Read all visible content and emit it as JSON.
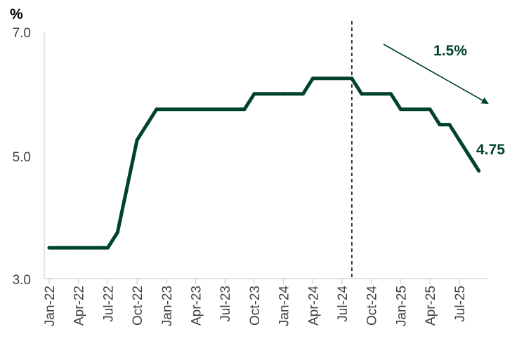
{
  "chart_data": {
    "type": "line",
    "ylabel": "%",
    "ylim": [
      3.0,
      7.0
    ],
    "y_ticks": [
      "3.0",
      "5.0",
      "7.0"
    ],
    "x_tick_labels": [
      "Jan-22",
      "Apr-22",
      "Jul-22",
      "Oct-22",
      "Jan-23",
      "Apr-23",
      "Jul-23",
      "Oct-23",
      "Jan-24",
      "Apr-24",
      "Jul-24",
      "Oct-24",
      "Jan-25",
      "Apr-25",
      "Jul-25"
    ],
    "x": [
      "Jan-22",
      "Feb-22",
      "Mar-22",
      "Apr-22",
      "May-22",
      "Jun-22",
      "Jul-22",
      "Aug-22",
      "Sep-22",
      "Oct-22",
      "Nov-22",
      "Dec-22",
      "Jan-23",
      "Feb-23",
      "Mar-23",
      "Apr-23",
      "May-23",
      "Jun-23",
      "Jul-23",
      "Aug-23",
      "Sep-23",
      "Oct-23",
      "Nov-23",
      "Dec-23",
      "Jan-24",
      "Feb-24",
      "Mar-24",
      "Apr-24",
      "May-24",
      "Jun-24",
      "Jul-24",
      "Aug-24",
      "Sep-24",
      "Oct-24",
      "Nov-24",
      "Dec-24",
      "Jan-25",
      "Feb-25",
      "Mar-25",
      "Apr-25",
      "May-25",
      "Jun-25",
      "Jul-25",
      "Aug-25",
      "Sep-25"
    ],
    "series": [
      {
        "values": [
          3.5,
          3.5,
          3.5,
          3.5,
          3.5,
          3.5,
          3.5,
          3.75,
          4.5,
          5.25,
          5.5,
          5.75,
          5.75,
          5.75,
          5.75,
          5.75,
          5.75,
          5.75,
          5.75,
          5.75,
          5.75,
          6.0,
          6.0,
          6.0,
          6.0,
          6.0,
          6.0,
          6.25,
          6.25,
          6.25,
          6.25,
          6.25,
          6.0,
          6.0,
          6.0,
          6.0,
          5.75,
          5.75,
          5.75,
          5.75,
          5.5,
          5.5,
          5.25,
          5.0,
          4.75
        ],
        "color": "#00432b"
      }
    ],
    "reference_line_at": "Aug-24",
    "annotations": {
      "end_label": "4.75",
      "arrow_label": "1.5%"
    },
    "grid": false
  }
}
